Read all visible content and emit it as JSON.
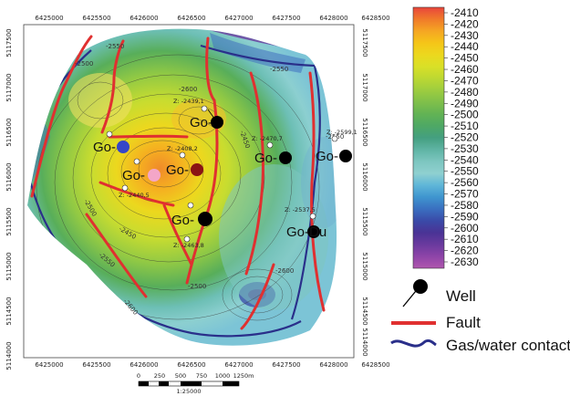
{
  "x_ticks": [
    "6425000",
    "6425500",
    "6426000",
    "6426500",
    "6427000",
    "6427500",
    "6428000",
    "6428500"
  ],
  "y_ticks": [
    "5117500",
    "5117000",
    "5116500",
    "5116000",
    "5115500",
    "5115000",
    "5114500",
    "5114000"
  ],
  "contour_labels": [
    "-2550",
    "-2500",
    "-2600",
    "-2550",
    "-2450",
    "-2550",
    "-2600",
    "-2450",
    "-2500",
    "-2550",
    "-2500",
    "-2600"
  ],
  "well_labels": [
    "Go-",
    "Go-",
    "Go-",
    "Go-",
    "Go-",
    "Go-",
    "Go-",
    "Go-Du"
  ],
  "depth_labels": [
    "Z: -2439,1",
    "Z: -2408,2",
    "Z: -2470,7",
    "Z: -2599,1",
    "Z: -2440,5",
    "Z: -2537,5",
    "Z: -2463,8"
  ],
  "colorbar": {
    "labels": [
      "-2410",
      "-2420",
      "-2430",
      "-2440",
      "-2450",
      "-2460",
      "-2470",
      "-2480",
      "-2490",
      "-2500",
      "-2510",
      "-2520",
      "-2530",
      "-2540",
      "-2550",
      "-2560",
      "-2570",
      "-2580",
      "-2590",
      "-2600",
      "-2610",
      "-2620",
      "-2630"
    ],
    "colors": [
      "#e8453c",
      "#f07a2a",
      "#f5a623",
      "#f5c518",
      "#ecd81e",
      "#d9e027",
      "#bcd832",
      "#9dcd3f",
      "#7fc04a",
      "#62b354",
      "#4ea865",
      "#449f80",
      "#5fb4a4",
      "#7dc6c0",
      "#8fd0d0",
      "#5fb6d8",
      "#3f95cf",
      "#3a6fc0",
      "#3a4aa8",
      "#4a3395",
      "#6a3a9e",
      "#8e44a8",
      "#b057ae"
    ]
  },
  "scale": {
    "ticks": [
      "0",
      "250",
      "500",
      "750",
      "1000",
      "1250m"
    ],
    "ratio": "1:25000"
  },
  "legend": {
    "well": "Well",
    "fault": "Fault",
    "contact": "Gas/water contact"
  },
  "colors": {
    "fault": "#e03030",
    "contact": "#2a2f8a",
    "well": "#000000"
  }
}
